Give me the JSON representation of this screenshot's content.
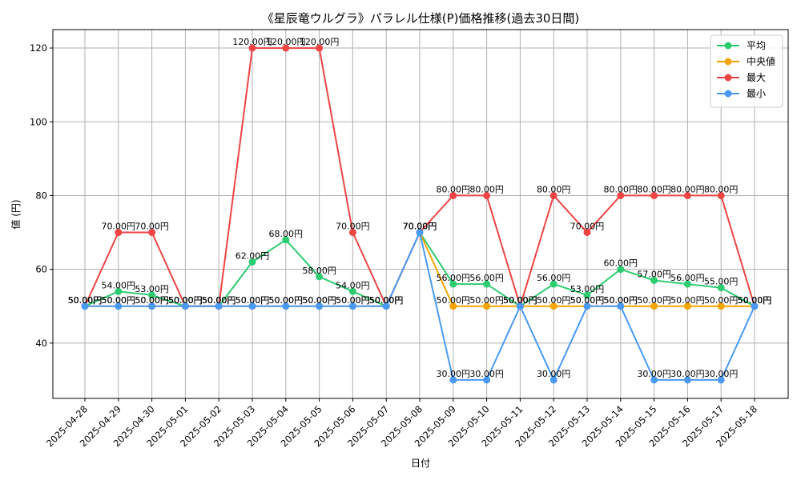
{
  "chart_data": {
    "type": "line",
    "title": "《星辰竜ウルグラ》パラレル仕様(P)価格推移(過去30日間)",
    "xlabel": "日付",
    "ylabel": "値 (円)",
    "ylim": [
      25,
      125
    ],
    "yticks": [
      40,
      60,
      80,
      100,
      120
    ],
    "grid": true,
    "legend_position": "top-right",
    "value_suffix": "円",
    "categories": [
      "2025-04-28",
      "2025-04-29",
      "2025-04-30",
      "2025-05-01",
      "2025-05-02",
      "2025-05-03",
      "2025-05-04",
      "2025-05-05",
      "2025-05-06",
      "2025-05-07",
      "2025-05-08",
      "2025-05-09",
      "2025-05-10",
      "2025-05-11",
      "2025-05-12",
      "2025-05-13",
      "2025-05-14",
      "2025-05-15",
      "2025-05-16",
      "2025-05-17",
      "2025-05-18"
    ],
    "series": [
      {
        "name": "平均",
        "color": "#2ecc71",
        "values": [
          50,
          54,
          53,
          50,
          50,
          62,
          68,
          58,
          54,
          50,
          70,
          56,
          56,
          50,
          56,
          53,
          60,
          57,
          56,
          55,
          50
        ]
      },
      {
        "name": "中央値",
        "color": "#f5a500",
        "values": [
          50,
          50,
          50,
          50,
          50,
          50,
          50,
          50,
          50,
          50,
          70,
          50,
          50,
          50,
          50,
          50,
          50,
          50,
          50,
          50,
          50
        ]
      },
      {
        "name": "最大",
        "color": "#ef4444",
        "values": [
          50,
          70,
          70,
          50,
          50,
          120,
          120,
          120,
          70,
          50,
          70,
          80,
          80,
          50,
          80,
          70,
          80,
          80,
          80,
          80,
          50
        ]
      },
      {
        "name": "最小",
        "color": "#4a9af5",
        "values": [
          50,
          50,
          50,
          50,
          50,
          50,
          50,
          50,
          50,
          50,
          70,
          30,
          30,
          50,
          30,
          50,
          50,
          30,
          30,
          30,
          50
        ]
      }
    ]
  }
}
